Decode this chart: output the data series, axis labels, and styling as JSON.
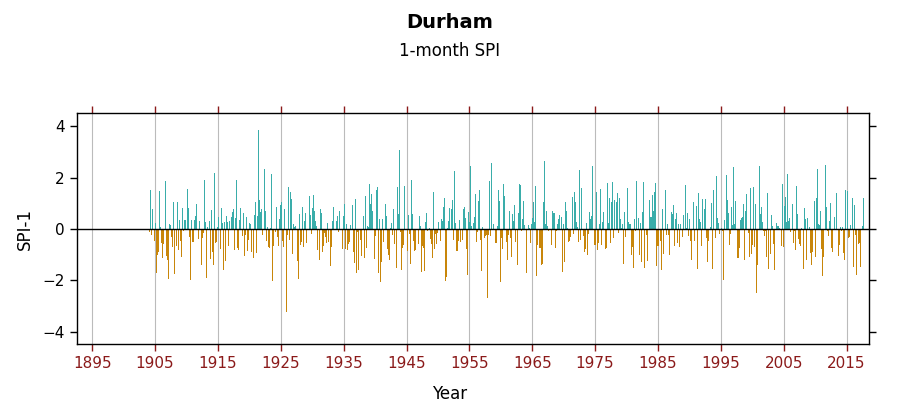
{
  "title": "Durham",
  "subtitle": "1-month SPI",
  "ylabel": "SPI-1",
  "xlabel": "Year",
  "ylim": [
    -4.5,
    4.5
  ],
  "xlim": [
    1892.5,
    2018.5
  ],
  "yticks": [
    -4,
    -2,
    0,
    2,
    4
  ],
  "xticks": [
    1895,
    1905,
    1915,
    1925,
    1935,
    1945,
    1955,
    1965,
    1975,
    1985,
    1995,
    2005,
    2015
  ],
  "color_positive": "#3aadaa",
  "color_negative": "#c8860a",
  "color_gray_early": "#888888",
  "background_color": "#ffffff",
  "grid_color": "#bbbbbb",
  "title_fontsize": 14,
  "subtitle_fontsize": 12,
  "axis_label_fontsize": 12,
  "tick_fontsize": 11,
  "seed": 42
}
